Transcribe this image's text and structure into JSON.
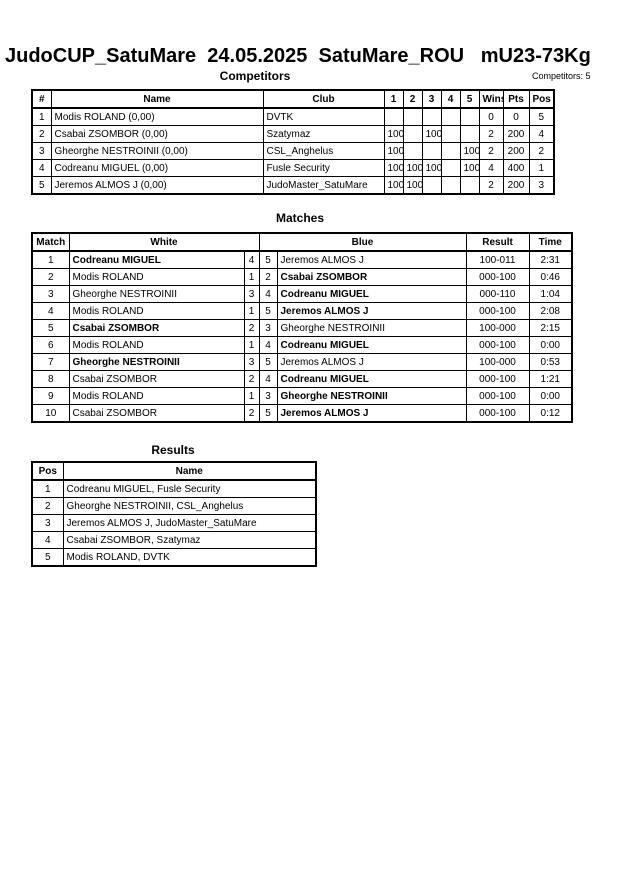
{
  "header": {
    "title": "JudoCUP_SatuMare  24.05.2025  SatuMare_ROU   mU23-73Kg",
    "subtitle": "Competitors",
    "count": "Competitors: 5"
  },
  "competitors": {
    "columns": [
      "#",
      "Name",
      "Club",
      "1",
      "2",
      "3",
      "4",
      "5",
      "Wins",
      "Pts",
      "Pos"
    ],
    "rows": [
      [
        "1",
        "Modis ROLAND  (0,00)",
        "DVTK",
        null,
        null,
        null,
        null,
        null,
        "0",
        "0",
        "5"
      ],
      [
        "2",
        "Csabai ZSOMBOR  (0,00)",
        "Szatymaz",
        "100",
        null,
        "100",
        null,
        null,
        "2",
        "200",
        "4"
      ],
      [
        "3",
        "Gheorghe NESTROINII  (0,00)",
        "CSL_Anghelus",
        "100",
        null,
        null,
        null,
        "100",
        "2",
        "200",
        "2"
      ],
      [
        "4",
        "Codreanu MIGUEL  (0,00)",
        "Fusle Security",
        "100",
        "100",
        "100",
        null,
        "100",
        "4",
        "400",
        "1"
      ],
      [
        "5",
        "Jeremos ALMOS J  (0,00)",
        "JudoMaster_SatuMare",
        "100",
        "100",
        null,
        null,
        null,
        "2",
        "200",
        "3"
      ]
    ]
  },
  "matches": {
    "title": "Matches",
    "columns": [
      "Match",
      "White",
      "Blue",
      "Result",
      "Time"
    ],
    "rows": [
      [
        "1",
        "Codreanu MIGUEL",
        "4",
        "5",
        "Jeremos ALMOS J",
        "100-011",
        "2:31"
      ],
      [
        "2",
        "Modis ROLAND",
        "1",
        "2",
        "Csabai ZSOMBOR",
        "000-100",
        "0:46"
      ],
      [
        "3",
        "Gheorghe NESTROINII",
        "3",
        "4",
        "Codreanu MIGUEL",
        "000-110",
        "1:04"
      ],
      [
        "4",
        "Modis ROLAND",
        "1",
        "5",
        "Jeremos ALMOS J",
        "000-100",
        "2:08"
      ],
      [
        "5",
        "Csabai ZSOMBOR",
        "2",
        "3",
        "Gheorghe NESTROINII",
        "100-000",
        "2:15"
      ],
      [
        "6",
        "Modis ROLAND",
        "1",
        "4",
        "Codreanu MIGUEL",
        "000-100",
        "0:00"
      ],
      [
        "7",
        "Gheorghe NESTROINII",
        "3",
        "5",
        "Jeremos ALMOS J",
        "100-000",
        "0:53"
      ],
      [
        "8",
        "Csabai ZSOMBOR",
        "2",
        "4",
        "Codreanu MIGUEL",
        "000-100",
        "1:21"
      ],
      [
        "9",
        "Modis ROLAND",
        "1",
        "3",
        "Gheorghe NESTROINII",
        "000-100",
        "0:00"
      ],
      [
        "10",
        "Csabai ZSOMBOR",
        "2",
        "5",
        "Jeremos ALMOS J",
        "000-100",
        "0:12"
      ]
    ],
    "winner": [
      "white",
      "blue",
      "blue",
      "blue",
      "white",
      "blue",
      "white",
      "blue",
      "blue",
      "blue"
    ]
  },
  "results": {
    "title": "Results",
    "columns": [
      "Pos",
      "Name"
    ],
    "rows": [
      [
        "1",
        "Codreanu MIGUEL, Fusle Security"
      ],
      [
        "2",
        "Gheorghe NESTROINII, CSL_Anghelus"
      ],
      [
        "3",
        "Jeremos ALMOS J, JudoMaster_SatuMare"
      ],
      [
        "4",
        "Csabai ZSOMBOR, Szatymaz"
      ],
      [
        "5",
        "Modis ROLAND, DVTK"
      ]
    ]
  }
}
